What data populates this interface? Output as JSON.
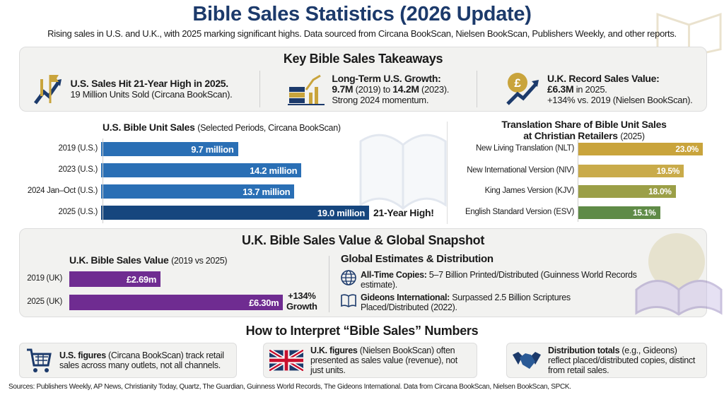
{
  "title": "Bible Sales Statistics (2026 Update)",
  "subtitle": "Rising sales in U.S. and U.K., with 2025 marking significant highs. Data sourced from Circana BookScan, Nielsen BookScan, Publishers Weekly, and other reports.",
  "takeaways": {
    "heading": "Key Bible Sales Takeaways",
    "items": [
      {
        "icon": "rising-arrow-flag-icon",
        "bold": "U.S. Sales Hit 21-Year High in 2025.",
        "line2": "19 Million Units Sold (Circana BookScan)."
      },
      {
        "icon": "books-growth-chart-icon",
        "bold": "Long-Term U.S. Growth:",
        "line2_b1": "9.7M",
        "line2_t1": " (2019) to ",
        "line2_b2": "14.2M",
        "line2_t2": " (2023).",
        "line3": "Strong 2024 momentum."
      },
      {
        "icon": "pound-coin-arrow-icon",
        "bold": "U.K. Record Sales Value:",
        "line2_b": "£6.3M",
        "line2_t": " in 2025.",
        "line3": "+134% vs. 2019 (Nielsen BookScan)."
      }
    ]
  },
  "chart_data": [
    {
      "type": "bar",
      "orientation": "horizontal",
      "title": "U.S. Bible Unit Sales",
      "title_note": "(Selected Periods, Circana BookScan)",
      "categories": [
        "2019 (U.S.)",
        "2023 (U.S.)",
        "2024 Jan–Oct (U.S.)",
        "2025 (U.S.)"
      ],
      "values": [
        9.7,
        14.2,
        13.7,
        19.0
      ],
      "data_labels": [
        "9.7 million",
        "14.2 million",
        "13.7 million",
        "19.0 million"
      ],
      "unit": "million units",
      "annotation": "21-Year High!",
      "colors": [
        "#2a6fb5",
        "#2a6fb5",
        "#2a6fb5",
        "#16467e"
      ]
    },
    {
      "type": "bar",
      "orientation": "horizontal",
      "title": "Translation Share of Bible Unit Sales",
      "title_line2": "at Christian Retailers",
      "title_note": "(2025)",
      "categories": [
        "New Living Translation (NLT)",
        "New International Version (NIV)",
        "King James Version (KJV)",
        "English Standard Version (ESV)"
      ],
      "values": [
        23.0,
        19.5,
        18.0,
        15.1
      ],
      "data_labels": [
        "23.0%",
        "19.5%",
        "18.0%",
        "15.1%"
      ],
      "unit": "%",
      "colors": [
        "#c9a43c",
        "#c9ab4a",
        "#9b9f47",
        "#5f8b47"
      ]
    },
    {
      "type": "bar",
      "orientation": "horizontal",
      "title": "U.K. Bible Sales Value",
      "title_note": "(2019 vs 2025)",
      "categories": [
        "2019 (UK)",
        "2025 (UK)"
      ],
      "values": [
        2.69,
        6.3
      ],
      "data_labels": [
        "£2.69m",
        "£6.30m"
      ],
      "unit": "£ million",
      "annotation": [
        "+134%",
        "Growth"
      ],
      "colors": [
        "#6f2c91",
        "#6f2c91"
      ]
    }
  ],
  "uk": {
    "heading": "U.K. Bible Sales Value & Global Snapshot"
  },
  "global": {
    "heading": "Global Estimates & Distribution",
    "items": [
      {
        "icon": "globe-icon",
        "bold": "All-Time Copies:",
        "text": " 5–7 Billion Printed/Distributed (Guinness World Records estimate)."
      },
      {
        "icon": "open-book-icon",
        "bold": "Gideons International:",
        "text": " Surpassed 2.5 Billion Scriptures Placed/Distributed (2022)."
      }
    ]
  },
  "interpret": {
    "heading": "How to Interpret “Bible Sales” Numbers",
    "cards": [
      {
        "icon": "shopping-cart-icon",
        "bold": "U.S. figures",
        "text": " (Circana BookScan) track retail sales across many outlets, not all channels."
      },
      {
        "icon": "uk-flag-icon",
        "bold": "U.K. figures",
        "text": " (Nielsen BookScan) often presented as sales value (revenue), not just units."
      },
      {
        "icon": "handshake-icon",
        "bold": "Distribution totals",
        "text": " (e.g., Gideons) reflect placed/distributed copies, distinct from retail sales."
      }
    ]
  },
  "sources": "Sources: Publishers Weekly, AP News, Christianity Today, Quartz, The Guardian, Guinness World Records, The Gideons International. Data from Circana BookScan, Nielsen BookScan, SPCK."
}
